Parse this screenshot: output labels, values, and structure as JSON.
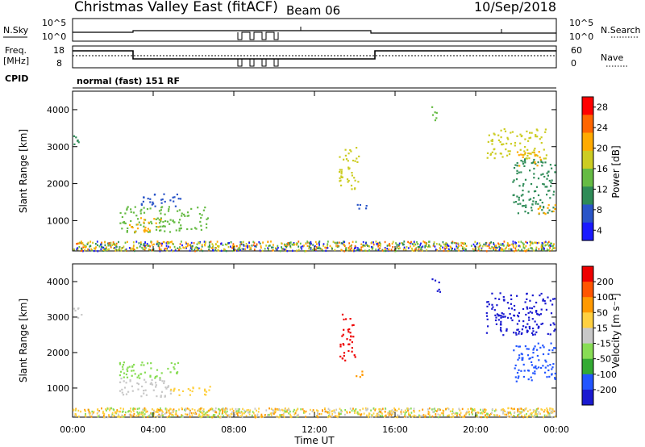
{
  "header": {
    "station": "Christmas Valley East (fitACF)",
    "beam": "Beam 06",
    "date": "10/Sep/2018"
  },
  "noise_panel": {
    "left_label": "N.Sky",
    "right_label": "N.Search",
    "ticks": [
      "10^5",
      "10^0"
    ]
  },
  "freq_panel": {
    "left_label_1": "Freq.",
    "left_label_2": "[MHz]",
    "right_label": "Nave",
    "left_ticks": [
      "18",
      "8"
    ],
    "right_ticks": [
      "60",
      "0"
    ]
  },
  "cpid": {
    "label": "CPID",
    "mode": "normal (fast) 151 RF"
  },
  "axes": {
    "y_label": "Slant Range [km]",
    "x_label": "Time UT",
    "y_ticks": [
      "4000",
      "3000",
      "2000",
      "1000"
    ],
    "x_ticks": [
      "00:00",
      "04:00",
      "08:00",
      "12:00",
      "16:00",
      "20:00",
      "00:00"
    ]
  },
  "power_bar": {
    "label": "Power [dB]",
    "ticks": [
      "28",
      "24",
      "20",
      "16",
      "12",
      "8",
      "4"
    ],
    "colors": [
      "#1a1aff",
      "#2a55c8",
      "#2e8b57",
      "#66bb44",
      "#cccc22",
      "#ffaa00",
      "#ff6600",
      "#ff0000"
    ]
  },
  "velocity_bar": {
    "label": "Velocity [m s⁻¹]",
    "ticks": [
      "200",
      "100",
      "50",
      "15",
      "-15",
      "-50",
      "-100",
      "-200"
    ],
    "colors": [
      "#1a1ad0",
      "#2255ff",
      "#33aa33",
      "#88dd55",
      "#c8c8c8",
      "#ffd040",
      "#ff9900",
      "#ff5500",
      "#ee0000"
    ]
  },
  "chart_data": {
    "type": "heatmap",
    "xlim": [
      "00:00",
      "24:00"
    ],
    "ylim": [
      180,
      4500
    ],
    "x_unit": "hours UT",
    "power_scatter": [
      {
        "t0": 0.0,
        "t1": 0.45,
        "r0": 3000,
        "r1": 3350,
        "c": "#2e8b57"
      },
      {
        "t0": 2.3,
        "t1": 6.8,
        "r0": 700,
        "r1": 1400,
        "c": "#66bb44"
      },
      {
        "t0": 3.2,
        "t1": 5.4,
        "r0": 1400,
        "r1": 1750,
        "c": "#2a55c8"
      },
      {
        "t0": 2.8,
        "t1": 4.4,
        "r0": 720,
        "r1": 1100,
        "c": "#ffaa00"
      },
      {
        "t0": 13.2,
        "t1": 14.2,
        "r0": 1800,
        "r1": 3000,
        "c": "#cccc22"
      },
      {
        "t0": 14.0,
        "t1": 14.6,
        "r0": 1250,
        "r1": 1500,
        "c": "#2a55c8"
      },
      {
        "t0": 17.8,
        "t1": 18.2,
        "r0": 3700,
        "r1": 4100,
        "c": "#66bb44"
      },
      {
        "t0": 20.5,
        "t1": 23.5,
        "r0": 2700,
        "r1": 3500,
        "c": "#cccc22"
      },
      {
        "t0": 21.8,
        "t1": 24.0,
        "r0": 1200,
        "r1": 2700,
        "c": "#2e8b57"
      },
      {
        "t0": 22.0,
        "t1": 23.2,
        "r0": 2500,
        "r1": 2900,
        "c": "#ffaa00"
      },
      {
        "t0": 23.0,
        "t1": 24.0,
        "r0": 1200,
        "r1": 1500,
        "c": "#ffaa00"
      }
    ],
    "velocity_scatter": [
      {
        "t0": 0.0,
        "t1": 0.45,
        "r0": 3000,
        "r1": 3350,
        "c": "#c8c8c8"
      },
      {
        "t0": 2.3,
        "t1": 5.6,
        "r0": 1300,
        "r1": 1750,
        "c": "#88dd55"
      },
      {
        "t0": 2.3,
        "t1": 5.0,
        "r0": 750,
        "r1": 1300,
        "c": "#c8c8c8"
      },
      {
        "t0": 4.8,
        "t1": 6.8,
        "r0": 800,
        "r1": 1100,
        "c": "#ffd040"
      },
      {
        "t0": 13.2,
        "t1": 14.0,
        "r0": 1800,
        "r1": 3100,
        "c": "#ee0000"
      },
      {
        "t0": 14.0,
        "t1": 14.6,
        "r0": 1250,
        "r1": 1500,
        "c": "#ff9900"
      },
      {
        "t0": 17.8,
        "t1": 18.2,
        "r0": 3700,
        "r1": 4100,
        "c": "#1a1ad0"
      },
      {
        "t0": 20.5,
        "t1": 24.0,
        "r0": 2500,
        "r1": 3700,
        "c": "#1a1ad0"
      },
      {
        "t0": 21.8,
        "t1": 24.0,
        "r0": 1200,
        "r1": 2300,
        "c": "#2255ff"
      }
    ]
  }
}
